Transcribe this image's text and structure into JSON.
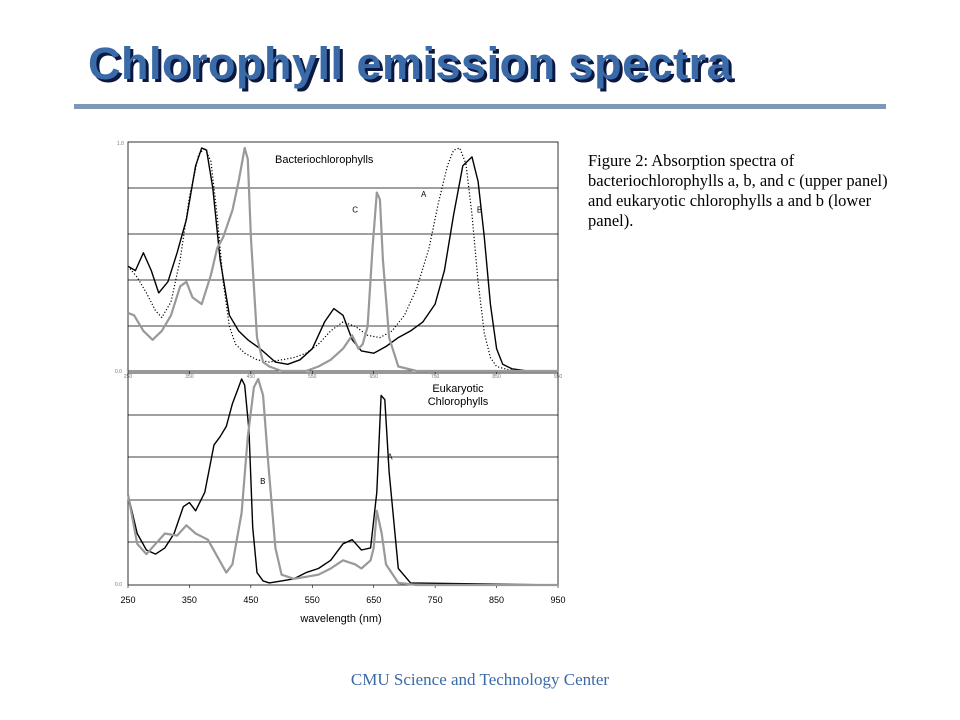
{
  "slide": {
    "title": "Chlorophyll emission spectra",
    "caption": "Figure 2: Absorption spectra of bacteriochlorophylls a, b, and c (upper panel) and eukaryotic chlorophylls a and b (lower panel).",
    "footer": "CMU Science and Technology Center"
  },
  "colors": {
    "title": "#3a6aa8",
    "title_shadow": "#0b1840",
    "rule": "#7e99b5",
    "grey_series": "#999999",
    "black_series": "#000000"
  },
  "chart_data": [
    {
      "type": "line",
      "title": "Bacteriochlorophylls",
      "xlim": [
        250,
        950
      ],
      "ylim": [
        0,
        1
      ],
      "grid": true,
      "x_tick_labels": [
        "250",
        "350",
        "450",
        "550",
        "650",
        "750",
        "850",
        "950"
      ],
      "y_tick_labels": [
        "1.0",
        "0.0"
      ],
      "series": [
        {
          "name": "A",
          "style": "dotted",
          "color": "#000000",
          "x": [
            250,
            265,
            280,
            295,
            305,
            320,
            335,
            350,
            365,
            375,
            385,
            395,
            405,
            415,
            425,
            440,
            460,
            480,
            500,
            520,
            540,
            560,
            580,
            600,
            620,
            640,
            660,
            680,
            700,
            720,
            740,
            755,
            770,
            780,
            790,
            800,
            810,
            820,
            830,
            840,
            850,
            870,
            900,
            950
          ],
          "y": [
            0.47,
            0.42,
            0.35,
            0.27,
            0.24,
            0.31,
            0.5,
            0.78,
            0.97,
            1.0,
            0.94,
            0.7,
            0.4,
            0.2,
            0.12,
            0.08,
            0.05,
            0.04,
            0.05,
            0.06,
            0.08,
            0.12,
            0.18,
            0.22,
            0.2,
            0.16,
            0.15,
            0.18,
            0.25,
            0.37,
            0.55,
            0.75,
            0.92,
            0.99,
            1.0,
            0.93,
            0.7,
            0.4,
            0.17,
            0.06,
            0.02,
            0.005,
            0.0,
            0.0
          ]
        },
        {
          "name": "B",
          "style": "solid",
          "color": "#000000",
          "x": [
            250,
            262,
            275,
            288,
            300,
            315,
            330,
            345,
            360,
            370,
            378,
            388,
            400,
            415,
            430,
            445,
            465,
            490,
            510,
            530,
            550,
            570,
            585,
            600,
            615,
            630,
            650,
            670,
            690,
            710,
            730,
            750,
            765,
            780,
            795,
            810,
            820,
            830,
            840,
            850,
            860,
            875,
            900,
            950
          ],
          "y": [
            0.47,
            0.45,
            0.53,
            0.45,
            0.35,
            0.4,
            0.53,
            0.68,
            0.92,
            1.0,
            0.99,
            0.82,
            0.5,
            0.25,
            0.18,
            0.14,
            0.1,
            0.04,
            0.03,
            0.05,
            0.1,
            0.22,
            0.28,
            0.25,
            0.14,
            0.09,
            0.08,
            0.11,
            0.15,
            0.18,
            0.22,
            0.3,
            0.45,
            0.7,
            0.92,
            0.96,
            0.85,
            0.6,
            0.3,
            0.1,
            0.03,
            0.01,
            0.0,
            0.0
          ]
        },
        {
          "name": "C",
          "style": "solid",
          "color": "#999999",
          "x": [
            250,
            260,
            275,
            290,
            305,
            320,
            335,
            345,
            355,
            370,
            385,
            395,
            405,
            420,
            430,
            440,
            445,
            450,
            460,
            470,
            480,
            500,
            520,
            540,
            560,
            580,
            600,
            615,
            625,
            632,
            640,
            648,
            655,
            660,
            665,
            675,
            690,
            720,
            800,
            950
          ],
          "y": [
            0.26,
            0.25,
            0.18,
            0.14,
            0.18,
            0.25,
            0.38,
            0.4,
            0.33,
            0.3,
            0.43,
            0.55,
            0.6,
            0.72,
            0.85,
            1.0,
            0.95,
            0.6,
            0.15,
            0.04,
            0.02,
            0.0,
            0.0,
            0.0,
            0.02,
            0.05,
            0.1,
            0.16,
            0.1,
            0.12,
            0.2,
            0.55,
            0.8,
            0.77,
            0.5,
            0.15,
            0.02,
            0.0,
            0.0,
            0.0
          ]
        }
      ],
      "annotations": [
        {
          "text": "A",
          "x": 727,
          "y": 0.78
        },
        {
          "text": "B",
          "x": 818,
          "y": 0.71
        },
        {
          "text": "C",
          "x": 615,
          "y": 0.71
        }
      ]
    },
    {
      "type": "line",
      "title": "Eukaryotic Chlorophylls",
      "xlabel": "wavelength (nm)",
      "xlim": [
        250,
        950
      ],
      "ylim": [
        0,
        1
      ],
      "grid": true,
      "x_tick_labels": [
        "250",
        "350",
        "450",
        "550",
        "650",
        "750",
        "850",
        "950"
      ],
      "y_tick_labels": [
        "0.0"
      ],
      "series": [
        {
          "name": "A",
          "style": "solid",
          "color": "#000000",
          "x": [
            250,
            265,
            280,
            295,
            310,
            325,
            340,
            350,
            360,
            375,
            390,
            400,
            410,
            420,
            430,
            435,
            440,
            447,
            453,
            460,
            470,
            480,
            500,
            520,
            540,
            560,
            580,
            600,
            615,
            630,
            645,
            655,
            662,
            668,
            675,
            690,
            710,
            950
          ],
          "y": [
            0.44,
            0.25,
            0.17,
            0.15,
            0.18,
            0.25,
            0.38,
            0.4,
            0.36,
            0.45,
            0.68,
            0.72,
            0.77,
            0.88,
            0.96,
            1.0,
            0.97,
            0.75,
            0.28,
            0.06,
            0.02,
            0.01,
            0.02,
            0.03,
            0.06,
            0.08,
            0.12,
            0.2,
            0.22,
            0.17,
            0.18,
            0.45,
            0.92,
            0.9,
            0.55,
            0.08,
            0.01,
            0.0
          ]
        },
        {
          "name": "B",
          "style": "solid",
          "color": "#999999",
          "x": [
            250,
            265,
            280,
            295,
            310,
            330,
            345,
            360,
            380,
            395,
            410,
            420,
            435,
            445,
            455,
            462,
            470,
            478,
            490,
            500,
            520,
            540,
            560,
            580,
            600,
            620,
            630,
            645,
            650,
            655,
            663,
            670,
            690,
            720,
            950
          ],
          "y": [
            0.44,
            0.2,
            0.15,
            0.2,
            0.25,
            0.24,
            0.29,
            0.25,
            0.22,
            0.14,
            0.06,
            0.1,
            0.35,
            0.72,
            0.96,
            1.0,
            0.92,
            0.6,
            0.18,
            0.05,
            0.03,
            0.04,
            0.05,
            0.08,
            0.12,
            0.1,
            0.08,
            0.12,
            0.18,
            0.36,
            0.25,
            0.1,
            0.01,
            0.0,
            0.0
          ]
        }
      ],
      "annotations": [
        {
          "text": "A",
          "x": 672,
          "y": 0.61
        },
        {
          "text": "B",
          "x": 465,
          "y": 0.49
        }
      ]
    }
  ]
}
